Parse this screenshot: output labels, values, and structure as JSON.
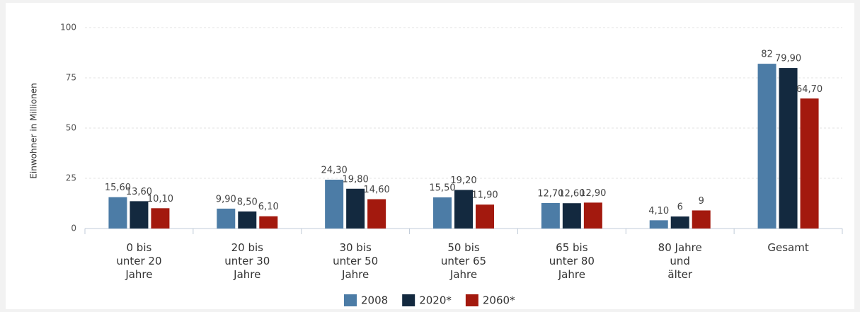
{
  "chart_data": {
    "type": "bar",
    "y_label": "Einwohner in Millionen",
    "categories": [
      "0 bis\nunter 20\nJahre",
      "20 bis\nunter 30\nJahre",
      "30 bis\nunter 50\nJahre",
      "50 bis\nunter 65\nJahre",
      "65 bis\nunter 80\nJahre",
      "80 Jahre\nund\nälter",
      "Gesamt"
    ],
    "series": [
      {
        "name": "2008",
        "color": "#4c7ca6",
        "values": [
          15.6,
          9.9,
          24.3,
          15.5,
          12.7,
          4.1,
          82
        ],
        "value_labels": [
          "15,60",
          "9,90",
          "24,30",
          "15,50",
          "12,70",
          "4,10",
          "82"
        ]
      },
      {
        "name": "2020*",
        "color": "#13293f",
        "values": [
          13.6,
          8.5,
          19.8,
          19.2,
          12.6,
          6,
          79.9
        ],
        "value_labels": [
          "13,60",
          "8,50",
          "19,80",
          "19,20",
          "12,60",
          "6",
          "79,90"
        ]
      },
      {
        "name": "2060*",
        "color": "#a3190e",
        "values": [
          10.1,
          6.1,
          14.6,
          11.9,
          12.9,
          9,
          64.7
        ],
        "value_labels": [
          "10,10",
          "6,10",
          "14,60",
          "11,90",
          "12,90",
          "9",
          "64,70"
        ]
      }
    ],
    "ylim": [
      0,
      100
    ],
    "yticks": [
      0,
      25,
      50,
      75,
      100
    ],
    "grid": true,
    "legend": "bottom"
  }
}
